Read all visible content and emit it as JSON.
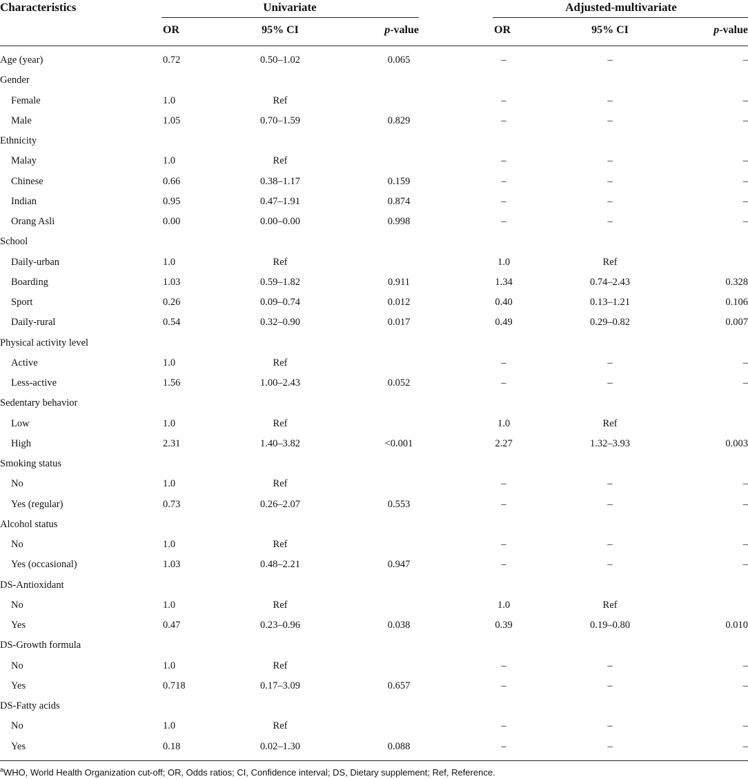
{
  "header": {
    "characteristics": "Characteristics",
    "univariate": "Univariate",
    "adjusted": "Adjusted-multivariate",
    "or": "OR",
    "ci": "95% CI",
    "p_italic": "p",
    "p_rest": "-value"
  },
  "rows": [
    {
      "label": "Age (year)",
      "indent": false,
      "u_or": "0.72",
      "u_ci": "0.50–1.02",
      "u_p": "0.065",
      "a_or": "–",
      "a_ci": "–",
      "a_p": "–"
    },
    {
      "label": "Gender",
      "indent": false,
      "u_or": "",
      "u_ci": "",
      "u_p": "",
      "a_or": "",
      "a_ci": "",
      "a_p": ""
    },
    {
      "label": "Female",
      "indent": true,
      "u_or": "1.0",
      "u_ci": "Ref",
      "u_p": "",
      "a_or": "–",
      "a_ci": "–",
      "a_p": "–"
    },
    {
      "label": "Male",
      "indent": true,
      "u_or": "1.05",
      "u_ci": "0.70–1.59",
      "u_p": "0.829",
      "a_or": "–",
      "a_ci": "–",
      "a_p": "–"
    },
    {
      "label": "Ethnicity",
      "indent": false,
      "u_or": "",
      "u_ci": "",
      "u_p": "",
      "a_or": "",
      "a_ci": "",
      "a_p": ""
    },
    {
      "label": "Malay",
      "indent": true,
      "u_or": "1.0",
      "u_ci": "Ref",
      "u_p": "",
      "a_or": "–",
      "a_ci": "–",
      "a_p": "–"
    },
    {
      "label": "Chinese",
      "indent": true,
      "u_or": "0.66",
      "u_ci": "0.38–1.17",
      "u_p": "0.159",
      "a_or": "–",
      "a_ci": "–",
      "a_p": "–"
    },
    {
      "label": "Indian",
      "indent": true,
      "u_or": "0.95",
      "u_ci": "0.47–1.91",
      "u_p": "0.874",
      "a_or": "–",
      "a_ci": "–",
      "a_p": "–"
    },
    {
      "label": "Orang Asli",
      "indent": true,
      "u_or": "0.00",
      "u_ci": "0.00–0.00",
      "u_p": "0.998",
      "a_or": "–",
      "a_ci": "–",
      "a_p": "–"
    },
    {
      "label": "School",
      "indent": false,
      "u_or": "",
      "u_ci": "",
      "u_p": "",
      "a_or": "",
      "a_ci": "",
      "a_p": ""
    },
    {
      "label": "Daily-urban",
      "indent": true,
      "u_or": "1.0",
      "u_ci": "Ref",
      "u_p": "",
      "a_or": "1.0",
      "a_ci": "Ref",
      "a_p": ""
    },
    {
      "label": "Boarding",
      "indent": true,
      "u_or": "1.03",
      "u_ci": "0.59–1.82",
      "u_p": "0.911",
      "a_or": "1.34",
      "a_ci": "0.74–2.43",
      "a_p": "0.328"
    },
    {
      "label": "Sport",
      "indent": true,
      "u_or": "0.26",
      "u_ci": "0.09–0.74",
      "u_p": "0.012",
      "a_or": "0.40",
      "a_ci": "0.13–1.21",
      "a_p": "0.106"
    },
    {
      "label": "Daily-rural",
      "indent": true,
      "u_or": "0.54",
      "u_ci": "0.32–0.90",
      "u_p": "0.017",
      "a_or": "0.49",
      "a_ci": "0.29–0.82",
      "a_p": "0.007"
    },
    {
      "label": "Physical activity level",
      "indent": false,
      "u_or": "",
      "u_ci": "",
      "u_p": "",
      "a_or": "",
      "a_ci": "",
      "a_p": ""
    },
    {
      "label": "Active",
      "indent": true,
      "u_or": "1.0",
      "u_ci": "Ref",
      "u_p": "",
      "a_or": "–",
      "a_ci": "–",
      "a_p": "–"
    },
    {
      "label": "Less-active",
      "indent": true,
      "u_or": "1.56",
      "u_ci": "1.00–2.43",
      "u_p": "0.052",
      "a_or": "–",
      "a_ci": "–",
      "a_p": "–"
    },
    {
      "label": "Sedentary behavior",
      "indent": false,
      "u_or": "",
      "u_ci": "",
      "u_p": "",
      "a_or": "",
      "a_ci": "",
      "a_p": ""
    },
    {
      "label": "Low",
      "indent": true,
      "u_or": "1.0",
      "u_ci": "Ref",
      "u_p": "",
      "a_or": "1.0",
      "a_ci": "Ref",
      "a_p": ""
    },
    {
      "label": "High",
      "indent": true,
      "u_or": "2.31",
      "u_ci": "1.40–3.82",
      "u_p": "<0.001",
      "a_or": "2.27",
      "a_ci": "1.32–3.93",
      "a_p": "0.003"
    },
    {
      "label": "Smoking status",
      "indent": false,
      "u_or": "",
      "u_ci": "",
      "u_p": "",
      "a_or": "",
      "a_ci": "",
      "a_p": ""
    },
    {
      "label": "No",
      "indent": true,
      "u_or": "1.0",
      "u_ci": "Ref",
      "u_p": "",
      "a_or": "–",
      "a_ci": "–",
      "a_p": "–"
    },
    {
      "label": "Yes (regular)",
      "indent": true,
      "u_or": "0.73",
      "u_ci": "0.26–2.07",
      "u_p": "0.553",
      "a_or": "–",
      "a_ci": "–",
      "a_p": "–"
    },
    {
      "label": "Alcohol status",
      "indent": false,
      "u_or": "",
      "u_ci": "",
      "u_p": "",
      "a_or": "",
      "a_ci": "",
      "a_p": ""
    },
    {
      "label": "No",
      "indent": true,
      "u_or": "1.0",
      "u_ci": "Ref",
      "u_p": "",
      "a_or": "–",
      "a_ci": "–",
      "a_p": "–"
    },
    {
      "label": "Yes (occasional)",
      "indent": true,
      "u_or": "1.03",
      "u_ci": "0.48–2.21",
      "u_p": "0.947",
      "a_or": "–",
      "a_ci": "–",
      "a_p": "–"
    },
    {
      "label": "DS-Antioxidant",
      "indent": false,
      "u_or": "",
      "u_ci": "",
      "u_p": "",
      "a_or": "",
      "a_ci": "",
      "a_p": ""
    },
    {
      "label": "No",
      "indent": true,
      "u_or": "1.0",
      "u_ci": "Ref",
      "u_p": "",
      "a_or": "1.0",
      "a_ci": "Ref",
      "a_p": ""
    },
    {
      "label": "Yes",
      "indent": true,
      "u_or": "0.47",
      "u_ci": "0.23–0.96",
      "u_p": "0.038",
      "a_or": "0.39",
      "a_ci": "0.19–0.80",
      "a_p": "0.010"
    },
    {
      "label": "DS-Growth formula",
      "indent": false,
      "u_or": "",
      "u_ci": "",
      "u_p": "",
      "a_or": "",
      "a_ci": "",
      "a_p": ""
    },
    {
      "label": "No",
      "indent": true,
      "u_or": "1.0",
      "u_ci": "Ref",
      "u_p": "",
      "a_or": "–",
      "a_ci": "–",
      "a_p": "–"
    },
    {
      "label": "Yes",
      "indent": true,
      "u_or": "0.718",
      "u_ci": "0.17–3.09",
      "u_p": "0.657",
      "a_or": "–",
      "a_ci": "–",
      "a_p": "–"
    },
    {
      "label": "DS-Fatty acids",
      "indent": false,
      "u_or": "",
      "u_ci": "",
      "u_p": "",
      "a_or": "",
      "a_ci": "",
      "a_p": ""
    },
    {
      "label": "No",
      "indent": true,
      "u_or": "1.0",
      "u_ci": "Ref",
      "u_p": "",
      "a_or": "–",
      "a_ci": "–",
      "a_p": "–"
    },
    {
      "label": "Yes",
      "indent": true,
      "u_or": "0.18",
      "u_ci": "0.02–1.30",
      "u_p": "0.088",
      "a_or": "–",
      "a_ci": "–",
      "a_p": "–"
    }
  ],
  "footnote": {
    "sup": "a",
    "text": "WHO, World Health Organization cut-off; OR, Odds ratios; CI, Confidence interval; DS, Dietary supplement; Ref, Reference."
  }
}
